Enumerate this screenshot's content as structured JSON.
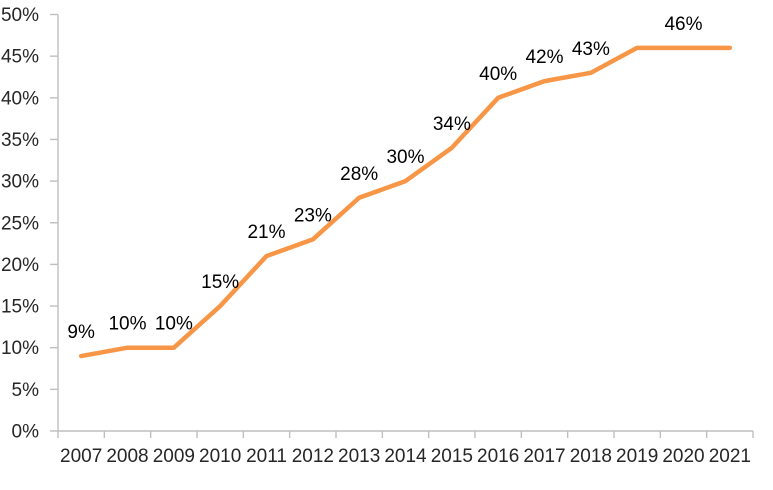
{
  "chart_data": {
    "type": "line",
    "title": "",
    "xlabel": "",
    "ylabel": "",
    "categories": [
      "2007",
      "2008",
      "2009",
      "2010",
      "2011",
      "2012",
      "2013",
      "2014",
      "2015",
      "2016",
      "2017",
      "2018",
      "2019",
      "2020",
      "2021"
    ],
    "values": [
      9,
      10,
      10,
      15,
      21,
      23,
      28,
      30,
      34,
      40,
      42,
      43,
      46,
      46,
      46
    ],
    "data_labels": [
      "9%",
      "10%",
      "10%",
      "15%",
      "21%",
      "23%",
      "28%",
      "30%",
      "34%",
      "40%",
      "42%",
      "43%",
      "",
      "46%",
      ""
    ],
    "y_tick_labels": [
      "0%",
      "5%",
      "10%",
      "15%",
      "20%",
      "25%",
      "30%",
      "35%",
      "40%",
      "45%",
      "50%"
    ],
    "ylim": [
      0,
      50
    ],
    "y_step": 5,
    "grid": false,
    "legend": "none"
  },
  "style": {
    "line_color": "#F79646",
    "axis_color": "#BFBFBF",
    "axis_text_color": "#262626",
    "data_label_color": "#000000",
    "background_color": "#FFFFFF"
  }
}
